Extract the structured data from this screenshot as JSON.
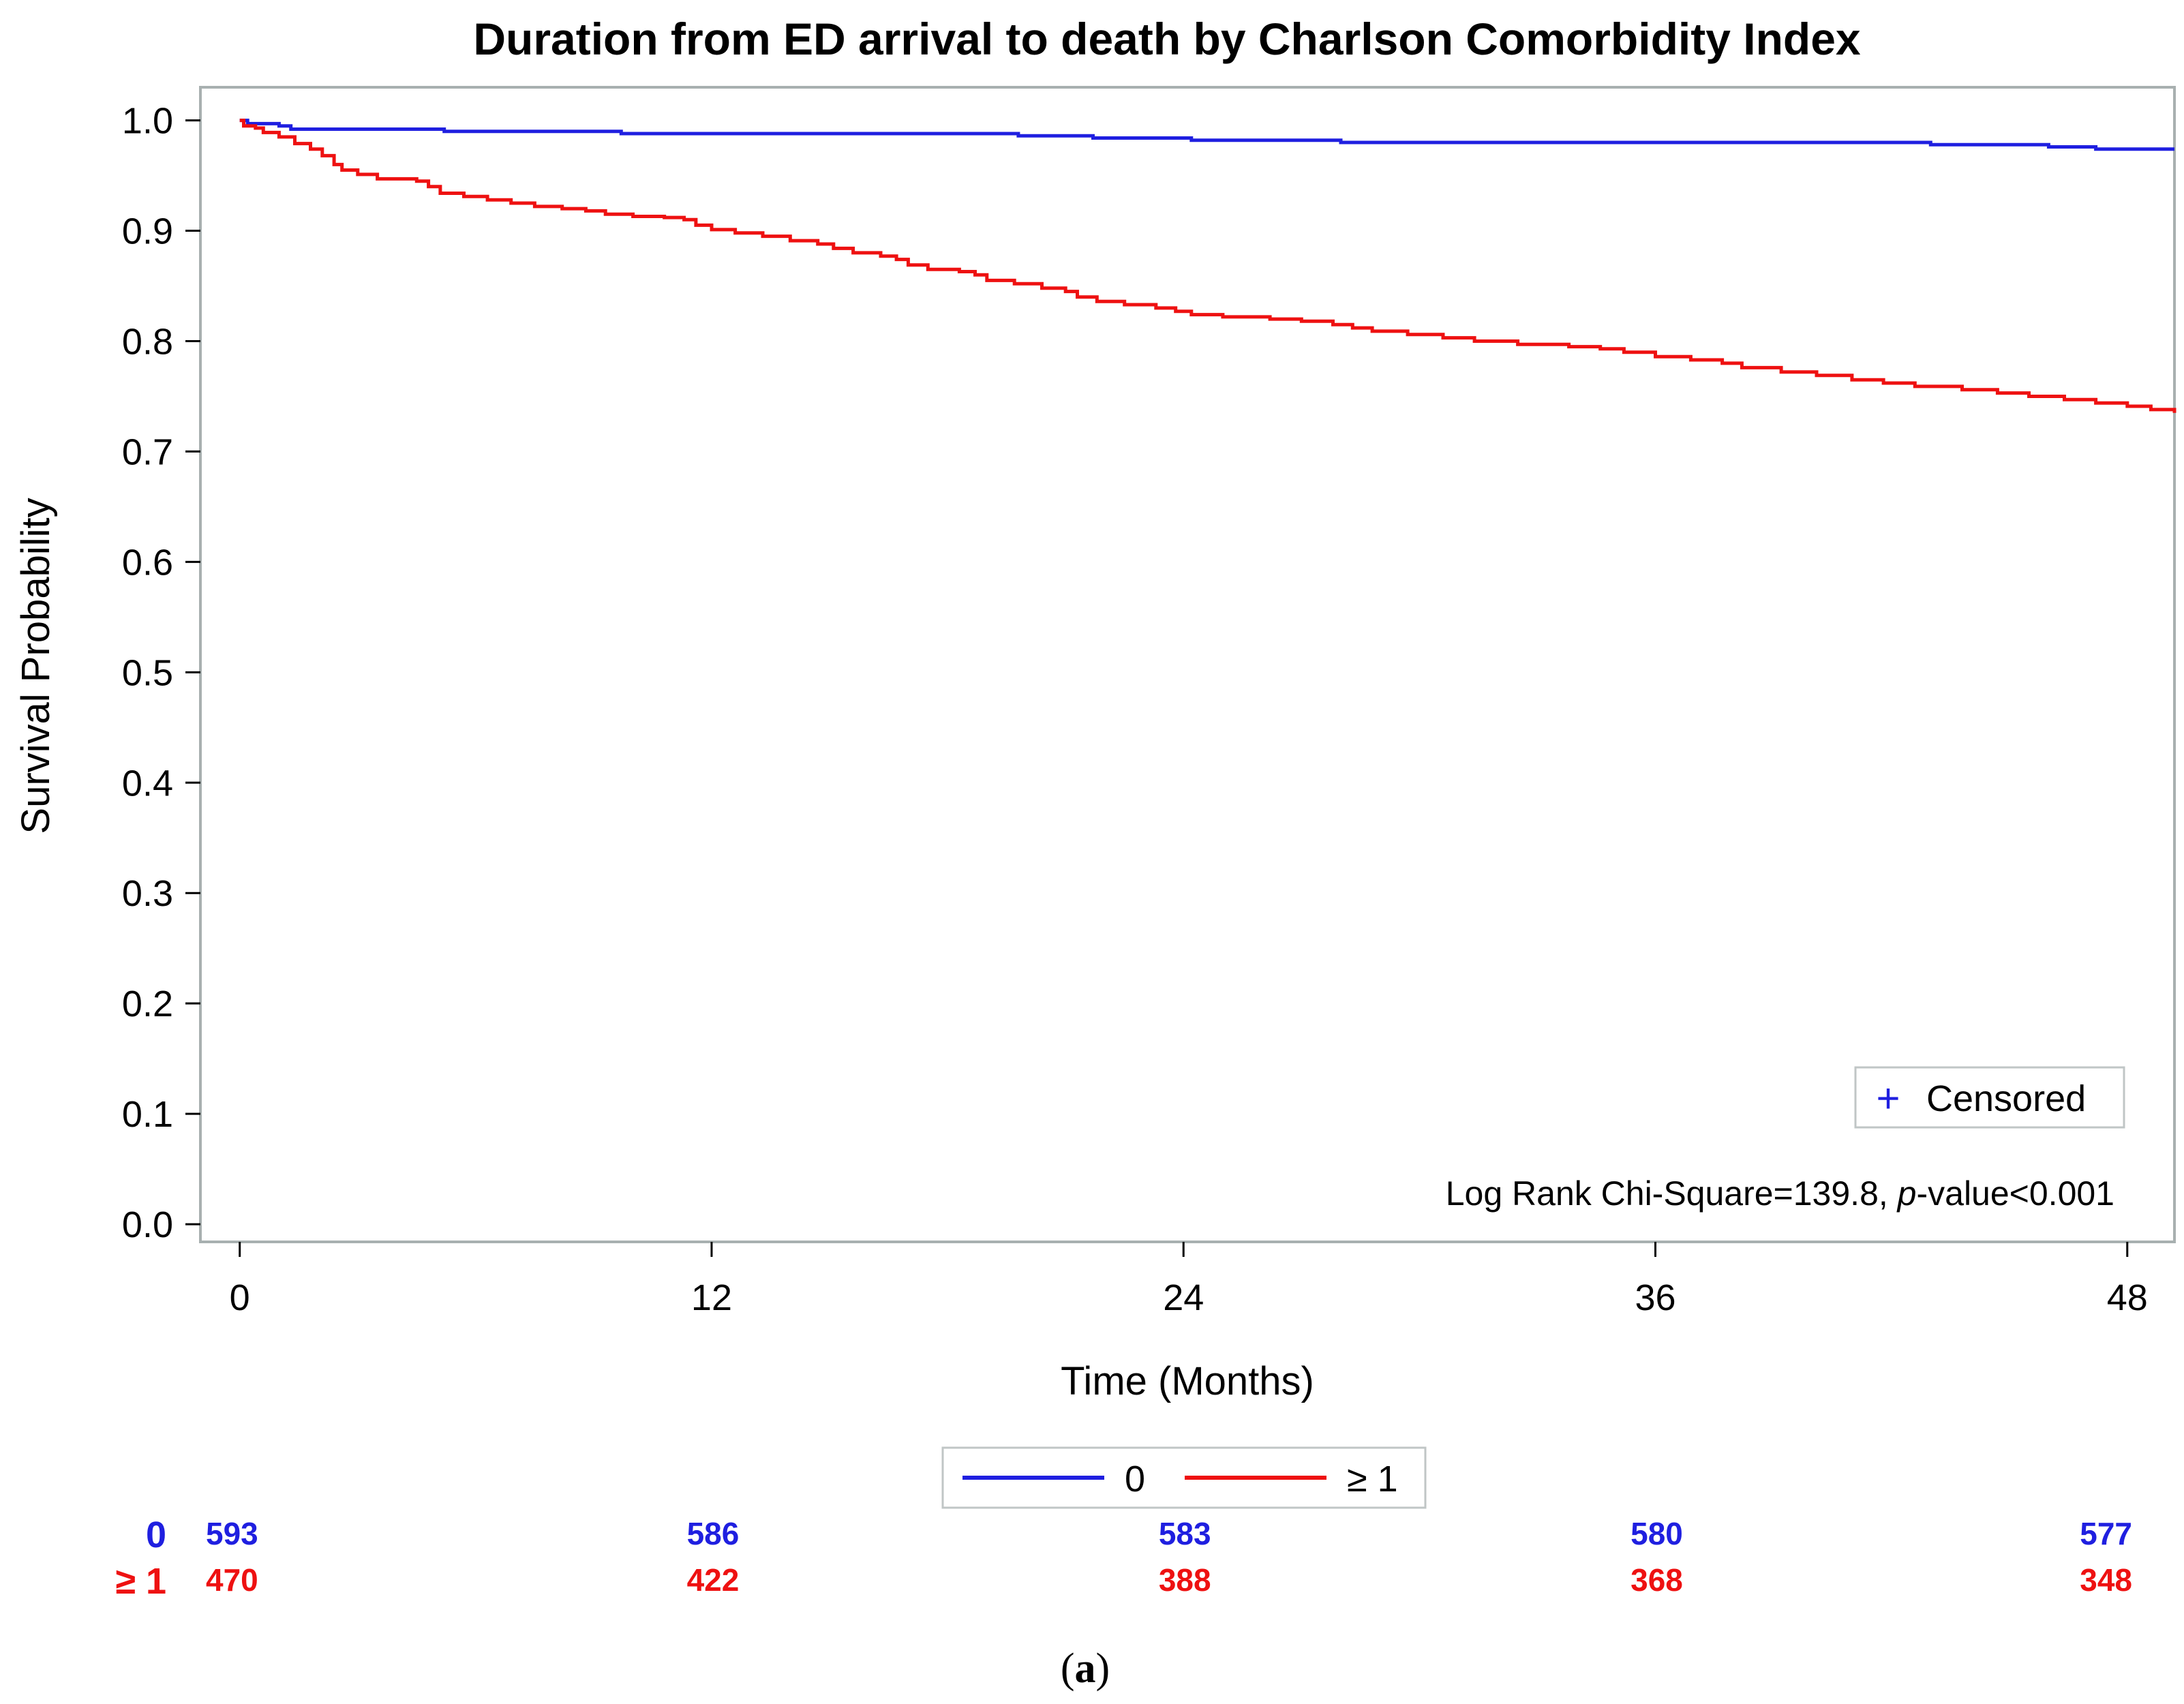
{
  "chart_data": {
    "type": "line",
    "title": "Duration from ED arrival to death by Charlson Comorbidity Index",
    "xlabel": "Time (Months)",
    "ylabel": "Survival Probability",
    "xlim": [
      -1,
      49.2
    ],
    "ylim": [
      -0.016,
      1.03
    ],
    "xticks": [
      "0",
      "12",
      "24",
      "36",
      "48"
    ],
    "yticks": [
      "0.0",
      "0.1",
      "0.2",
      "0.3",
      "0.4",
      "0.5",
      "0.6",
      "0.7",
      "0.8",
      "0.9",
      "1.0"
    ],
    "grid": false,
    "colors": {
      "cci0": "#1f1fe0",
      "cci1": "#ee1111",
      "frame": "#a8b0b0"
    },
    "series": [
      {
        "name": "0",
        "color": "#1f1fe0",
        "points": [
          [
            0,
            1.0
          ],
          [
            0.2,
            0.997
          ],
          [
            1.0,
            0.995
          ],
          [
            1.3,
            0.992
          ],
          [
            5.0,
            0.992
          ],
          [
            5.2,
            0.99
          ],
          [
            9.5,
            0.99
          ],
          [
            9.7,
            0.988
          ],
          [
            19.6,
            0.988
          ],
          [
            19.8,
            0.986
          ],
          [
            21.5,
            0.986
          ],
          [
            21.7,
            0.984
          ],
          [
            24.0,
            0.984
          ],
          [
            24.2,
            0.982
          ],
          [
            27.8,
            0.982
          ],
          [
            28.0,
            0.98
          ],
          [
            42.8,
            0.98
          ],
          [
            43.0,
            0.978
          ],
          [
            45.8,
            0.978
          ],
          [
            46.0,
            0.976
          ],
          [
            47.0,
            0.976
          ],
          [
            47.2,
            0.974
          ],
          [
            49.2,
            0.974
          ]
        ]
      },
      {
        "name": "≥ 1",
        "color": "#ee1111",
        "points": [
          [
            0,
            1.0
          ],
          [
            0.1,
            0.995
          ],
          [
            0.4,
            0.993
          ],
          [
            0.6,
            0.989
          ],
          [
            1.0,
            0.985
          ],
          [
            1.4,
            0.979
          ],
          [
            1.8,
            0.974
          ],
          [
            2.1,
            0.968
          ],
          [
            2.4,
            0.96
          ],
          [
            2.6,
            0.955
          ],
          [
            3.0,
            0.951
          ],
          [
            3.5,
            0.947
          ],
          [
            4.5,
            0.945
          ],
          [
            4.8,
            0.94
          ],
          [
            5.1,
            0.934
          ],
          [
            5.7,
            0.931
          ],
          [
            6.3,
            0.928
          ],
          [
            6.9,
            0.925
          ],
          [
            7.5,
            0.922
          ],
          [
            8.2,
            0.92
          ],
          [
            8.8,
            0.918
          ],
          [
            9.3,
            0.915
          ],
          [
            10.0,
            0.913
          ],
          [
            10.8,
            0.912
          ],
          [
            11.3,
            0.91
          ],
          [
            11.6,
            0.905
          ],
          [
            12.0,
            0.901
          ],
          [
            12.6,
            0.898
          ],
          [
            13.3,
            0.895
          ],
          [
            14.0,
            0.891
          ],
          [
            14.7,
            0.888
          ],
          [
            15.1,
            0.884
          ],
          [
            15.6,
            0.88
          ],
          [
            16.3,
            0.877
          ],
          [
            16.7,
            0.874
          ],
          [
            17.0,
            0.869
          ],
          [
            17.5,
            0.865
          ],
          [
            18.3,
            0.863
          ],
          [
            18.7,
            0.86
          ],
          [
            19.0,
            0.855
          ],
          [
            19.7,
            0.852
          ],
          [
            20.4,
            0.848
          ],
          [
            21.0,
            0.845
          ],
          [
            21.3,
            0.84
          ],
          [
            21.8,
            0.836
          ],
          [
            22.5,
            0.833
          ],
          [
            23.3,
            0.83
          ],
          [
            23.8,
            0.827
          ],
          [
            24.2,
            0.824
          ],
          [
            25.0,
            0.822
          ],
          [
            26.2,
            0.82
          ],
          [
            27.0,
            0.818
          ],
          [
            27.8,
            0.815
          ],
          [
            28.3,
            0.812
          ],
          [
            28.8,
            0.809
          ],
          [
            29.7,
            0.806
          ],
          [
            30.6,
            0.803
          ],
          [
            31.4,
            0.8
          ],
          [
            32.5,
            0.797
          ],
          [
            33.8,
            0.795
          ],
          [
            34.6,
            0.793
          ],
          [
            35.2,
            0.79
          ],
          [
            36.0,
            0.786
          ],
          [
            36.9,
            0.783
          ],
          [
            37.7,
            0.78
          ],
          [
            38.2,
            0.776
          ],
          [
            39.2,
            0.772
          ],
          [
            40.1,
            0.769
          ],
          [
            41.0,
            0.765
          ],
          [
            41.8,
            0.762
          ],
          [
            42.6,
            0.759
          ],
          [
            43.8,
            0.756
          ],
          [
            44.7,
            0.753
          ],
          [
            45.5,
            0.75
          ],
          [
            46.4,
            0.747
          ],
          [
            47.2,
            0.744
          ],
          [
            48.0,
            0.741
          ],
          [
            48.6,
            0.738
          ],
          [
            49.2,
            0.735
          ]
        ]
      }
    ],
    "legend": {
      "position": "bottom",
      "entries": [
        "0",
        "≥ 1"
      ]
    },
    "inset_legend": {
      "position": "bottom-right",
      "symbol": "+",
      "label": "Censored"
    },
    "annotation": {
      "prefix": "Log Rank Chi-Square=139.8, ",
      "italic": "p",
      "suffix": "-value<0.001"
    },
    "number_at_risk": {
      "times": [
        0,
        12,
        24,
        36,
        48
      ],
      "groups": [
        {
          "label": "0",
          "color": "#1f1fe0",
          "values": [
            "593",
            "586",
            "583",
            "580",
            "577"
          ]
        },
        {
          "label": "≥ 1",
          "color": "#ee1111",
          "values": [
            "470",
            "422",
            "388",
            "368",
            "348"
          ]
        }
      ]
    },
    "panel_label": {
      "open": "(",
      "letter": "a",
      "close": ")"
    }
  }
}
